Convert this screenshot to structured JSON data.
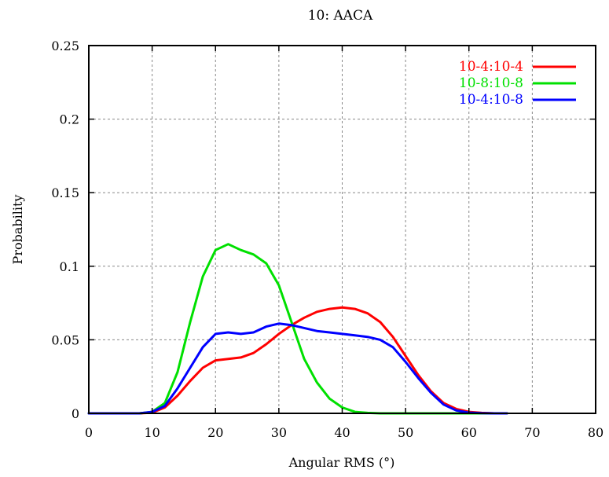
{
  "chart_data": {
    "type": "line",
    "title": "10: AACA",
    "xlabel": "Angular RMS (°)",
    "ylabel": "Probability",
    "xlim": [
      0,
      80
    ],
    "ylim": [
      0,
      0.25
    ],
    "x_ticks": [
      "0",
      "10",
      "20",
      "30",
      "40",
      "50",
      "60",
      "70",
      "80"
    ],
    "y_ticks": [
      "0",
      "0.05",
      "0.1",
      "0.15",
      "0.2",
      "0.25"
    ],
    "grid": true,
    "legend_position": "top-right",
    "series": [
      {
        "name": "10-4:10-4",
        "color": "#ff0000",
        "x": [
          0,
          2,
          4,
          6,
          8,
          10,
          12,
          14,
          16,
          18,
          20,
          22,
          24,
          26,
          28,
          30,
          32,
          34,
          36,
          38,
          40,
          42,
          44,
          46,
          48,
          50,
          52,
          54,
          56,
          58,
          60,
          62,
          64,
          66
        ],
        "y": [
          0,
          0,
          0,
          0,
          0,
          0.0005,
          0.004,
          0.012,
          0.022,
          0.031,
          0.036,
          0.037,
          0.038,
          0.041,
          0.047,
          0.054,
          0.06,
          0.065,
          0.069,
          0.071,
          0.072,
          0.071,
          0.068,
          0.062,
          0.052,
          0.039,
          0.026,
          0.015,
          0.007,
          0.003,
          0.001,
          0.0003,
          0,
          0
        ]
      },
      {
        "name": "10-8:10-8",
        "color": "#00e000",
        "x": [
          0,
          2,
          4,
          6,
          8,
          10,
          12,
          14,
          16,
          18,
          20,
          22,
          24,
          26,
          28,
          30,
          32,
          34,
          36,
          38,
          40,
          42,
          44,
          46,
          48,
          50,
          52,
          54,
          56,
          58,
          60,
          62,
          64,
          66
        ],
        "y": [
          0,
          0,
          0,
          0,
          0,
          0.001,
          0.007,
          0.028,
          0.062,
          0.093,
          0.111,
          0.115,
          0.111,
          0.108,
          0.102,
          0.087,
          0.062,
          0.037,
          0.021,
          0.01,
          0.004,
          0.001,
          0.0003,
          0,
          0,
          0,
          0,
          0,
          0,
          0,
          0,
          0,
          0,
          0
        ]
      },
      {
        "name": "10-4:10-8",
        "color": "#0000ff",
        "x": [
          0,
          2,
          4,
          6,
          8,
          10,
          12,
          14,
          16,
          18,
          20,
          22,
          24,
          26,
          28,
          30,
          32,
          34,
          36,
          38,
          40,
          42,
          44,
          46,
          48,
          50,
          52,
          54,
          56,
          58,
          60,
          62,
          64,
          66
        ],
        "y": [
          0,
          0,
          0,
          0,
          0,
          0.001,
          0.005,
          0.017,
          0.031,
          0.045,
          0.054,
          0.055,
          0.054,
          0.055,
          0.059,
          0.061,
          0.06,
          0.058,
          0.056,
          0.055,
          0.054,
          0.053,
          0.052,
          0.05,
          0.045,
          0.035,
          0.024,
          0.014,
          0.006,
          0.002,
          0.0005,
          0.0001,
          0,
          0
        ]
      }
    ]
  }
}
